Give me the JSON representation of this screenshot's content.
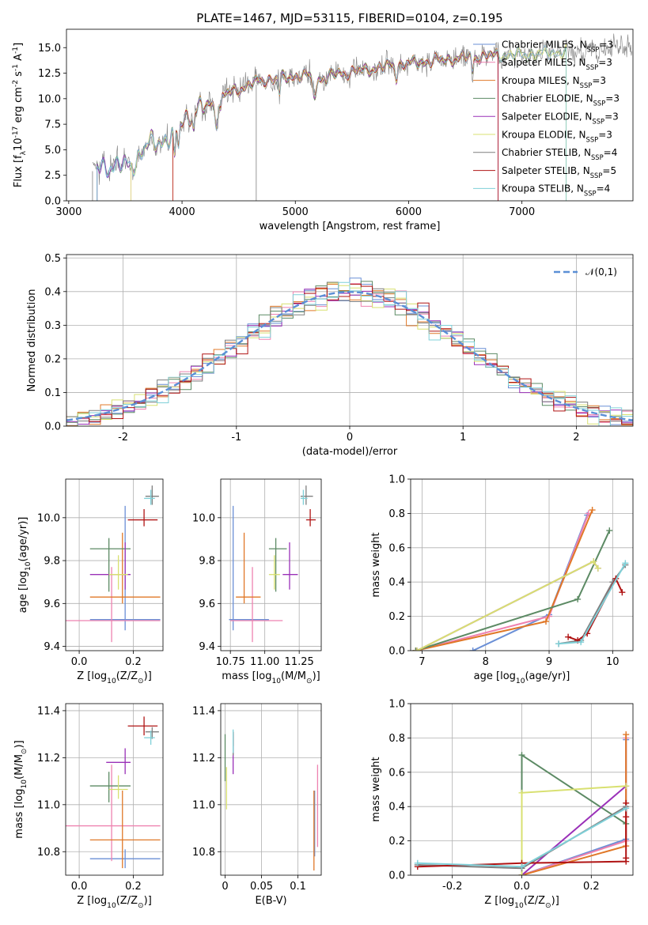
{
  "figure": {
    "title": "PLATE=1467, MJD=53115, FIBERID=0104, z=0.195"
  },
  "series_names": [
    "Chabrier MILES, N$_{SSP}$=3",
    "Salpeter MILES, N$_{SSP}$=3",
    "Kroupa MILES, N$_{SSP}$=3",
    "Chabrier ELODIE, N$_{SSP}$=3",
    "Salpeter ELODIE, N$_{SSP}$=3",
    "Kroupa ELODIE, N$_{SSP}$=3",
    "Chabrier STELIB, N$_{SSP}$=4",
    "Salpeter STELIB, N$_{SSP}$=5",
    "Kroupa STELIB, N$_{SSP}$=4"
  ],
  "colors": {
    "Chabrier MILES": "#6a8fd6",
    "Salpeter MILES": "#ee82b0",
    "Kroupa MILES": "#e07828",
    "Chabrier ELODIE": "#5c8a64",
    "Salpeter ELODIE": "#9a30b8",
    "Kroupa ELODIE": "#d8e070",
    "Chabrier STELIB": "#7f7f7f",
    "Salpeter STELIB": "#b01414",
    "Kroupa STELIB": "#7fd0d8",
    "normal": "#5b8fd6"
  },
  "chart_data": [
    {
      "id": "spectrum",
      "type": "line",
      "title": "PLATE=1467, MJD=53115, FIBERID=0104, z=0.195",
      "xlabel": "wavelength [Angstrom, rest frame]",
      "ylabel": "Flux [f$_\\lambda$10$^{-17}$ erg cm$^{-2}$ s$^{-1}$ A$^{-1}$]",
      "xlim": [
        2980,
        7980
      ],
      "ylim": [
        0,
        16.8
      ],
      "xticks": [
        3000,
        4000,
        5000,
        6000,
        7000
      ],
      "yticks": [
        0.0,
        2.5,
        5.0,
        7.5,
        10.0,
        12.5,
        15.0
      ],
      "continuum_nodes": [
        [
          3200,
          3.0
        ],
        [
          3400,
          3.5
        ],
        [
          3550,
          3.4
        ],
        [
          3700,
          5.5
        ],
        [
          3900,
          6.2
        ],
        [
          4000,
          8.0
        ],
        [
          4200,
          9.2
        ],
        [
          4400,
          10.5
        ],
        [
          4700,
          11.8
        ],
        [
          5000,
          12.2
        ],
        [
          5300,
          12.3
        ],
        [
          5600,
          12.8
        ],
        [
          5900,
          13.3
        ],
        [
          6200,
          13.7
        ],
        [
          6500,
          14.0
        ],
        [
          6700,
          14.2
        ],
        [
          7000,
          14.3
        ],
        [
          7300,
          14.5
        ],
        [
          7980,
          15.0
        ]
      ],
      "data_range": [
        3210,
        7970
      ],
      "model_ranges": [
        [
          3250,
          6790
        ],
        [
          3550,
          7390
        ],
        [
          3920,
          6790
        ],
        [
          3250,
          7390
        ]
      ],
      "legend": "upper right"
    },
    {
      "id": "residuals",
      "type": "histogram",
      "xlabel": "(data-model)/error",
      "ylabel": "Normed distribution",
      "xlim": [
        -2.5,
        2.5
      ],
      "ylim": [
        0,
        0.51
      ],
      "xticks": [
        -2,
        -1,
        0,
        1,
        2
      ],
      "yticks": [
        0.0,
        0.1,
        0.2,
        0.3,
        0.4,
        0.5
      ],
      "bin_width": 0.1,
      "legend": "upper right",
      "legend_label": "$\\mathcal{N}(0,1)$"
    },
    {
      "id": "age_vs_z",
      "type": "errorbar",
      "xlabel": "Z [log$_{10}$(Z/Z$_\\odot$)]",
      "ylabel": "age  [log$_{10}$(age/yr)]",
      "xlim": [
        -0.05,
        0.31
      ],
      "ylim": [
        9.38,
        10.18
      ],
      "xticks": [
        0.0,
        0.2
      ],
      "yticks": [
        9.4,
        9.6,
        9.8,
        10.0
      ],
      "points": [
        {
          "series": 0,
          "x": 0.17,
          "y": 9.525,
          "xerr": [
            0.13,
            0.13
          ],
          "yerr": [
            0.05,
            0.53
          ]
        },
        {
          "series": 1,
          "x": 0.12,
          "y": 9.52,
          "xerr": [
            0.17,
            0.18
          ],
          "yerr": [
            0.1,
            0.25
          ]
        },
        {
          "series": 2,
          "x": 0.16,
          "y": 9.63,
          "xerr": [
            0.12,
            0.14
          ],
          "yerr": [
            0.03,
            0.3
          ]
        },
        {
          "series": 3,
          "x": 0.11,
          "y": 9.855,
          "xerr": [
            0.07,
            0.08
          ],
          "yerr": [
            0.2,
            0.05
          ]
        },
        {
          "series": 4,
          "x": 0.17,
          "y": 9.735,
          "xerr": [
            0.13,
            0.02
          ],
          "yerr": [
            0.07,
            0.15
          ]
        },
        {
          "series": 5,
          "x": 0.145,
          "y": 9.735,
          "xerr": [
            0.035,
            0.035
          ],
          "yerr": [
            0.07,
            0.09
          ]
        },
        {
          "series": 6,
          "x": 0.27,
          "y": 10.1,
          "xerr": [
            0.025,
            0.025
          ],
          "yerr": [
            0.04,
            0.05
          ]
        },
        {
          "series": 7,
          "x": 0.24,
          "y": 9.99,
          "xerr": [
            0.06,
            0.05
          ],
          "yerr": [
            0.03,
            0.05
          ]
        },
        {
          "series": 8,
          "x": 0.265,
          "y": 10.09,
          "xerr": [
            0.025,
            0.015
          ],
          "yerr": [
            0.03,
            0.04
          ]
        }
      ]
    },
    {
      "id": "age_vs_mass",
      "type": "errorbar",
      "xlabel": "mass [log$_{10}$(M/M$_\\odot$)]",
      "ylabel": "",
      "xlim": [
        10.68,
        11.41
      ],
      "ylim": [
        9.38,
        10.18
      ],
      "xticks": [
        10.75,
        11.0,
        11.25
      ],
      "yticks": [
        9.4,
        9.6,
        9.8,
        10.0
      ],
      "points": [
        {
          "series": 0,
          "x": 10.77,
          "y": 9.525,
          "xerr": [
            0.03,
            0.26
          ],
          "yerr": [
            0.05,
            0.53
          ]
        },
        {
          "series": 1,
          "x": 10.91,
          "y": 9.52,
          "xerr": [
            0.16,
            0.22
          ],
          "yerr": [
            0.1,
            0.25
          ]
        },
        {
          "series": 2,
          "x": 10.85,
          "y": 9.63,
          "xerr": [
            0.06,
            0.12
          ],
          "yerr": [
            0.03,
            0.3
          ]
        },
        {
          "series": 3,
          "x": 11.08,
          "y": 9.855,
          "xerr": [
            0.05,
            0.08
          ],
          "yerr": [
            0.2,
            0.05
          ]
        },
        {
          "series": 4,
          "x": 11.18,
          "y": 9.735,
          "xerr": [
            0.05,
            0.06
          ],
          "yerr": [
            0.07,
            0.15
          ]
        },
        {
          "series": 5,
          "x": 11.07,
          "y": 9.735,
          "xerr": [
            0.04,
            0.04
          ],
          "yerr": [
            0.07,
            0.09
          ]
        },
        {
          "series": 6,
          "x": 11.3,
          "y": 10.1,
          "xerr": [
            0.04,
            0.05
          ],
          "yerr": [
            0.04,
            0.05
          ]
        },
        {
          "series": 7,
          "x": 11.33,
          "y": 9.99,
          "xerr": [
            0.03,
            0.04
          ],
          "yerr": [
            0.03,
            0.05
          ]
        },
        {
          "series": 8,
          "x": 11.28,
          "y": 10.09,
          "xerr": [
            0.02,
            0.03
          ],
          "yerr": [
            0.03,
            0.04
          ]
        }
      ]
    },
    {
      "id": "massweight_vs_age",
      "type": "line",
      "xlabel": "age  [log$_{10}$(age/yr)]",
      "ylabel": "mass weight",
      "xlim": [
        6.82,
        10.32
      ],
      "ylim": [
        0,
        1
      ],
      "xticks": [
        7,
        8,
        9,
        10
      ],
      "yticks": [
        0.0,
        0.2,
        0.4,
        0.6,
        0.8,
        1.0
      ],
      "series": [
        {
          "series": 0,
          "x": [
            7.8,
            9.0,
            9.6
          ],
          "y": [
            0.0,
            0.21,
            0.79
          ]
        },
        {
          "series": 1,
          "x": [
            6.9,
            9.0,
            9.62
          ],
          "y": [
            0.0,
            0.2,
            0.8
          ]
        },
        {
          "series": 2,
          "x": [
            6.9,
            8.95,
            9.68
          ],
          "y": [
            0.0,
            0.17,
            0.82
          ]
        },
        {
          "series": 3,
          "x": [
            6.9,
            9.45,
            9.95
          ],
          "y": [
            0.0,
            0.3,
            0.7
          ]
        },
        {
          "series": 4,
          "x": [
            6.92,
            9.7,
            9.77
          ],
          "y": [
            0.0,
            0.52,
            0.48
          ]
        },
        {
          "series": 5,
          "x": [
            6.92,
            9.7,
            9.77
          ],
          "y": [
            0.0,
            0.52,
            0.48
          ]
        },
        {
          "series": 6,
          "x": [
            9.15,
            9.5,
            10.0,
            10.2
          ],
          "y": [
            0.04,
            0.06,
            0.4,
            0.5
          ]
        },
        {
          "series": 7,
          "x": [
            9.3,
            9.45,
            9.6,
            10.05,
            10.15
          ],
          "y": [
            0.08,
            0.06,
            0.1,
            0.42,
            0.34
          ]
        },
        {
          "series": 8,
          "x": [
            9.15,
            9.5,
            10.2
          ],
          "y": [
            0.04,
            0.05,
            0.51
          ]
        }
      ]
    },
    {
      "id": "mass_vs_z",
      "type": "errorbar",
      "xlabel": "Z [log$_{10}$(Z/Z$_\\odot$)]",
      "ylabel": "mass [log$_{10}$(M/M$_\\odot$)]",
      "xlim": [
        -0.05,
        0.31
      ],
      "ylim": [
        10.7,
        11.43
      ],
      "xticks": [
        0.0,
        0.2
      ],
      "yticks": [
        10.8,
        11.0,
        11.2,
        11.4
      ],
      "points": [
        {
          "series": 0,
          "x": 0.17,
          "y": 10.77,
          "xerr": [
            0.13,
            0.13
          ],
          "yerr": [
            0.04,
            0.04
          ]
        },
        {
          "series": 1,
          "x": 0.12,
          "y": 10.91,
          "xerr": [
            0.17,
            0.18
          ],
          "yerr": [
            0.15,
            0.26
          ]
        },
        {
          "series": 2,
          "x": 0.16,
          "y": 10.85,
          "xerr": [
            0.12,
            0.14
          ],
          "yerr": [
            0.12,
            0.21
          ]
        },
        {
          "series": 3,
          "x": 0.11,
          "y": 11.08,
          "xerr": [
            0.07,
            0.08
          ],
          "yerr": [
            0.07,
            0.06
          ]
        },
        {
          "series": 4,
          "x": 0.17,
          "y": 11.18,
          "xerr": [
            0.07,
            0.02
          ],
          "yerr": [
            0.05,
            0.06
          ]
        },
        {
          "series": 5,
          "x": 0.145,
          "y": 11.065,
          "xerr": [
            0.035,
            0.035
          ],
          "yerr": [
            0.04,
            0.06
          ]
        },
        {
          "series": 6,
          "x": 0.27,
          "y": 11.31,
          "xerr": [
            0.025,
            0.025
          ],
          "yerr": [
            0.03,
            0.02
          ]
        },
        {
          "series": 7,
          "x": 0.24,
          "y": 11.335,
          "xerr": [
            0.06,
            0.05
          ],
          "yerr": [
            0.04,
            0.04
          ]
        },
        {
          "series": 8,
          "x": 0.265,
          "y": 11.285,
          "xerr": [
            0.025,
            0.015
          ],
          "yerr": [
            0.03,
            0.03
          ]
        }
      ]
    },
    {
      "id": "mass_vs_ebv",
      "type": "errorbar",
      "xlabel": "E(B-V)",
      "ylabel": "",
      "xlim": [
        -0.006,
        0.132
      ],
      "ylim": [
        10.7,
        11.43
      ],
      "xticks": [
        0.0,
        0.05,
        0.1
      ],
      "yticks": [
        10.8,
        11.0,
        11.2,
        11.4
      ],
      "points": [
        {
          "series": 0,
          "x": 0.123,
          "y": 10.9,
          "xerr": [
            0,
            0
          ],
          "yerr": [
            0.12,
            0.16
          ]
        },
        {
          "series": 1,
          "x": 0.127,
          "y": 11.0,
          "xerr": [
            0,
            0
          ],
          "yerr": [
            0.18,
            0.17
          ]
        },
        {
          "series": 2,
          "x": 0.122,
          "y": 10.92,
          "xerr": [
            0,
            0
          ],
          "yerr": [
            0.2,
            0.14
          ]
        },
        {
          "series": 3,
          "x": 0.0,
          "y": 11.18,
          "xerr": [
            0,
            0
          ],
          "yerr": [
            0.08,
            0.12
          ]
        },
        {
          "series": 4,
          "x": 0.011,
          "y": 11.19,
          "xerr": [
            0,
            0
          ],
          "yerr": [
            0.06,
            0.11
          ]
        },
        {
          "series": 5,
          "x": 0.002,
          "y": 11.07,
          "xerr": [
            0,
            0
          ],
          "yerr": [
            0.09,
            0.09
          ]
        },
        {
          "series": 6,
          "x": 0.011,
          "y": 11.26,
          "xerr": [
            0,
            0
          ],
          "yerr": [
            0.05,
            0.05
          ]
        },
        {
          "series": 7,
          "x": 0.011,
          "y": 11.28,
          "xerr": [
            0,
            0
          ],
          "yerr": [
            0.03,
            0.03
          ]
        },
        {
          "series": 8,
          "x": 0.011,
          "y": 11.27,
          "xerr": [
            0,
            0
          ],
          "yerr": [
            0.05,
            0.05
          ]
        }
      ]
    },
    {
      "id": "massweight_vs_z",
      "type": "line",
      "xlabel": "Z [log$_{10}$(Z/Z$_\\odot$)]",
      "ylabel": "mass weight",
      "xlim": [
        -0.32,
        0.32
      ],
      "ylim": [
        0,
        1
      ],
      "xticks": [
        -0.2,
        0.0,
        0.2
      ],
      "yticks": [
        0.0,
        0.2,
        0.4,
        0.6,
        0.8,
        1.0
      ],
      "series": [
        {
          "series": 0,
          "x": [
            0.0,
            0.3,
            0.3
          ],
          "y": [
            0.0,
            0.21,
            0.79
          ]
        },
        {
          "series": 1,
          "x": [
            0.0,
            0.3,
            0.3
          ],
          "y": [
            0.0,
            0.2,
            0.8
          ]
        },
        {
          "series": 2,
          "x": [
            0.0,
            0.3,
            0.3
          ],
          "y": [
            0.0,
            0.17,
            0.82
          ]
        },
        {
          "series": 3,
          "x": [
            0.0,
            0.0,
            0.3
          ],
          "y": [
            0.0,
            0.7,
            0.3
          ]
        },
        {
          "series": 4,
          "x": [
            0.0,
            0.3
          ],
          "y": [
            0.0,
            0.52
          ]
        },
        {
          "series": 5,
          "x": [
            0.0,
            0.0,
            0.3
          ],
          "y": [
            0.0,
            0.48,
            0.52
          ]
        },
        {
          "series": 6,
          "x": [
            -0.3,
            0.0,
            0.3
          ],
          "y": [
            0.06,
            0.04,
            0.4
          ]
        },
        {
          "series": 7,
          "x": [
            -0.3,
            0.0,
            0.3,
            0.3,
            0.3,
            0.3
          ],
          "y": [
            0.05,
            0.07,
            0.08,
            0.1,
            0.34,
            0.42
          ]
        },
        {
          "series": 8,
          "x": [
            -0.3,
            0.0,
            0.3
          ],
          "y": [
            0.07,
            0.05,
            0.39
          ]
        }
      ]
    }
  ]
}
